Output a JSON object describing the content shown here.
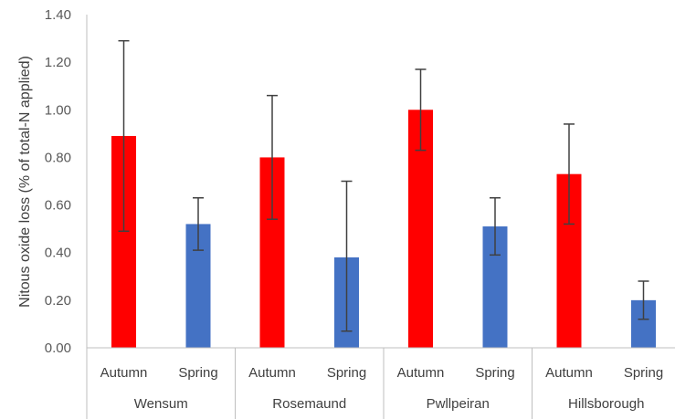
{
  "chart_data": {
    "type": "bar",
    "title": "",
    "xlabel": "",
    "ylabel": "Nitous oxide loss (% of total-N applied)",
    "ylim": [
      0,
      1.4
    ],
    "yticks": [
      "0.00",
      "0.20",
      "0.40",
      "0.60",
      "0.80",
      "1.00",
      "1.20",
      "1.40"
    ],
    "ytick_values": [
      0,
      0.2,
      0.4,
      0.6,
      0.8,
      1.0,
      1.2,
      1.4
    ],
    "grid": false,
    "legend": "none",
    "colors": {
      "Autumn": "#ff0000",
      "Spring": "#4472c4",
      "errorbar": "#404040",
      "axis": "#bfbfbf"
    },
    "groups": [
      "Wensum",
      "Rosemaund",
      "Pwllpeiran",
      "Hillsborough"
    ],
    "categories": [
      "Autumn",
      "Spring",
      "Autumn",
      "Spring",
      "Autumn",
      "Spring",
      "Autumn",
      "Spring"
    ],
    "bars": [
      {
        "group": "Wensum",
        "category": "Autumn",
        "value": 0.89,
        "err_low": 0.49,
        "err_high": 1.29
      },
      {
        "group": "Wensum",
        "category": "Spring",
        "value": 0.52,
        "err_low": 0.41,
        "err_high": 0.63
      },
      {
        "group": "Rosemaund",
        "category": "Autumn",
        "value": 0.8,
        "err_low": 0.54,
        "err_high": 1.06
      },
      {
        "group": "Rosemaund",
        "category": "Spring",
        "value": 0.38,
        "err_low": 0.07,
        "err_high": 0.7
      },
      {
        "group": "Pwllpeiran",
        "category": "Autumn",
        "value": 1.0,
        "err_low": 0.83,
        "err_high": 1.17
      },
      {
        "group": "Pwllpeiran",
        "category": "Spring",
        "value": 0.51,
        "err_low": 0.39,
        "err_high": 0.63
      },
      {
        "group": "Hillsborough",
        "category": "Autumn",
        "value": 0.73,
        "err_low": 0.52,
        "err_high": 0.94
      },
      {
        "group": "Hillsborough",
        "category": "Spring",
        "value": 0.2,
        "err_low": 0.12,
        "err_high": 0.28
      }
    ]
  }
}
